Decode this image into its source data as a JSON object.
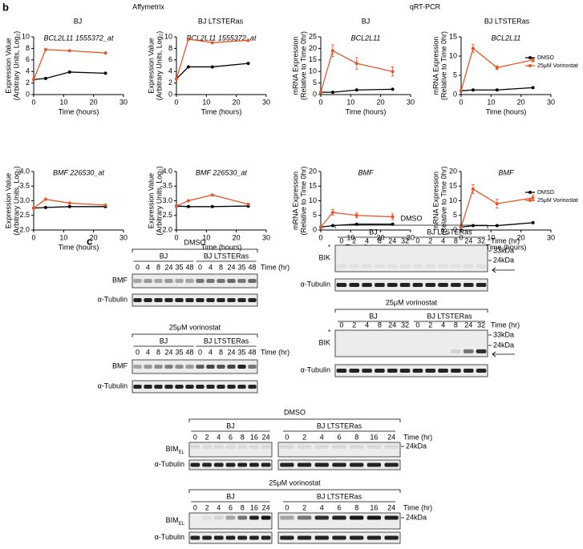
{
  "panel_labels": [
    "b",
    "c"
  ],
  "headers": {
    "methods": [
      "Affymetrix",
      "qRT-PCR"
    ],
    "columns": [
      "BJ",
      "BJ LTSTERas",
      "BJ",
      "BJ LTSTERas"
    ]
  },
  "chart_data": [
    {
      "type": "line",
      "title": "BCL2L11 1555372_at",
      "ylabel": [
        "Expression Value",
        "(Arbitrary Units, Log₂)"
      ],
      "xlabel": "Time (hours)",
      "x": [
        0,
        4,
        12,
        24
      ],
      "xlim": [
        0,
        30
      ],
      "xticks": [
        0,
        10,
        20,
        30
      ],
      "ylim": [
        0,
        10
      ],
      "yticks": [
        0,
        2,
        4,
        6,
        8,
        10
      ],
      "series": [
        {
          "name": "DMSO",
          "color": "#000000",
          "values": [
            2.6,
            2.8,
            3.9,
            3.7
          ]
        },
        {
          "name": "25μM Vorinostat",
          "color": "#e8572a",
          "values": [
            2.6,
            7.8,
            7.6,
            7.2
          ]
        }
      ]
    },
    {
      "type": "line",
      "title": "BCL2L11 1555372_at",
      "ylabel": [
        "Expression Value",
        "(Arbitrary Units, Log₂)"
      ],
      "xlabel": "Time (hours)",
      "x": [
        0,
        4,
        12,
        24
      ],
      "xlim": [
        0,
        30
      ],
      "xticks": [
        0,
        10,
        20,
        30
      ],
      "ylim": [
        0,
        10
      ],
      "yticks": [
        0,
        2,
        4,
        6,
        8,
        10
      ],
      "series": [
        {
          "name": "DMSO",
          "color": "#000000",
          "values": [
            2.7,
            4.8,
            4.8,
            5.4
          ]
        },
        {
          "name": "25μM Vorinostat",
          "color": "#e8572a",
          "values": [
            2.7,
            9.6,
            9.0,
            9.4
          ]
        }
      ]
    },
    {
      "type": "line",
      "title": "BCL2L11",
      "ylabel": [
        "mRNA Expression",
        "(Relative to Time 0hr)"
      ],
      "xlabel": "Time (hours)",
      "x": [
        0,
        4,
        12,
        24
      ],
      "xlim": [
        0,
        30
      ],
      "xticks": [
        0,
        10,
        20,
        30
      ],
      "ylim": [
        0,
        25
      ],
      "yticks": [
        0,
        5,
        10,
        15,
        20,
        25
      ],
      "series": [
        {
          "name": "DMSO",
          "color": "#000000",
          "values": [
            1,
            1,
            2,
            2.3
          ]
        },
        {
          "name": "25μM Vorinostat",
          "color": "#e8572a",
          "values": [
            1,
            19,
            13.5,
            10
          ],
          "errors": [
            0,
            2.5,
            2.5,
            2
          ]
        }
      ]
    },
    {
      "type": "line",
      "title": "BCL2L11",
      "ylabel": [
        "mRNA Expression",
        "(Relative to Time 0hr)"
      ],
      "xlabel": "Time (hours)",
      "x": [
        0,
        4,
        12,
        24
      ],
      "xlim": [
        0,
        30
      ],
      "xticks": [
        0,
        10,
        20,
        30
      ],
      "ylim": [
        0,
        15
      ],
      "yticks": [
        0,
        5,
        10,
        15
      ],
      "legend": "upper right",
      "series": [
        {
          "name": "DMSO",
          "color": "#000000",
          "values": [
            1,
            1.2,
            1.2,
            1.8
          ]
        },
        {
          "name": "25μM Vorinostat",
          "color": "#e8572a",
          "values": [
            1,
            12,
            7,
            9
          ],
          "errors": [
            0,
            1,
            0.5,
            0.5
          ]
        }
      ]
    },
    {
      "type": "line",
      "title": "BMF 226530_at",
      "ylabel": [
        "Expression Value",
        "(Arbitrary Units, Log₂)"
      ],
      "xlabel": "Time (hours)",
      "x": [
        0,
        4,
        12,
        24
      ],
      "xlim": [
        0,
        30
      ],
      "xticks": [
        0,
        10,
        20,
        30
      ],
      "ylim": [
        2,
        4
      ],
      "yticks": [
        {
          "value": 2,
          "label": "2.0"
        },
        {
          "value": 2.5,
          "label": "2.5"
        },
        {
          "value": 3,
          "label": "3.0"
        },
        {
          "value": 3.5,
          "label": "3.5"
        },
        {
          "value": 4,
          "label": "4.0"
        }
      ],
      "series": [
        {
          "name": "DMSO",
          "color": "#000000",
          "values": [
            2.75,
            2.77,
            2.8,
            2.8
          ]
        },
        {
          "name": "25μM Vorinostat",
          "color": "#e8572a",
          "values": [
            2.75,
            3.05,
            2.92,
            2.85
          ]
        }
      ]
    },
    {
      "type": "line",
      "title": "BMF 226530_at",
      "ylabel": [
        "Expression Value",
        "(Arbitrary Units, Log₂)"
      ],
      "xlabel": "Time (hours)",
      "x": [
        0,
        4,
        12,
        24
      ],
      "xlim": [
        0,
        30
      ],
      "xticks": [
        0,
        10,
        20,
        30
      ],
      "ylim": [
        2,
        4
      ],
      "yticks": [
        {
          "value": 2,
          "label": "2.0"
        },
        {
          "value": 2.5,
          "label": "2.5"
        },
        {
          "value": 3,
          "label": "3.0"
        },
        {
          "value": 3.5,
          "label": "3.5"
        },
        {
          "value": 4,
          "label": "4.0"
        }
      ],
      "series": [
        {
          "name": "DMSO",
          "color": "#000000",
          "values": [
            2.82,
            2.8,
            2.8,
            2.82
          ]
        },
        {
          "name": "25μM Vorinostat",
          "color": "#e8572a",
          "values": [
            2.82,
            3.0,
            3.2,
            2.88
          ]
        }
      ]
    },
    {
      "type": "line",
      "title": "BMF",
      "ylabel": [
        "mRNA Expression",
        "(Relative to Time 0hr)"
      ],
      "xlabel": "Time (hours)",
      "x": [
        0,
        4,
        12,
        24
      ],
      "xlim": [
        0,
        30
      ],
      "xticks": [
        0,
        10,
        20,
        30
      ],
      "ylim": [
        0,
        20
      ],
      "yticks": [
        0,
        5,
        10,
        15,
        20
      ],
      "series": [
        {
          "name": "DMSO",
          "color": "#000000",
          "values": [
            1,
            1.5,
            2,
            2
          ]
        },
        {
          "name": "25μM Vorinostat",
          "color": "#e8572a",
          "values": [
            1,
            6,
            5,
            4.5
          ],
          "errors": [
            0,
            1,
            0.8,
            1
          ]
        }
      ]
    },
    {
      "type": "line",
      "title": "BMF",
      "ylabel": [
        "mRNA Expression",
        "(Relative to Time 0hr)"
      ],
      "xlabel": "Time (hours)",
      "x": [
        0,
        4,
        12,
        24
      ],
      "xlim": [
        0,
        30
      ],
      "xticks": [
        0,
        10,
        20,
        30
      ],
      "ylim": [
        0,
        20
      ],
      "yticks": [
        0,
        5,
        10,
        15,
        20
      ],
      "legend": "upper right",
      "series": [
        {
          "name": "DMSO",
          "color": "#000000",
          "values": [
            1,
            1.5,
            1.5,
            2.5
          ]
        },
        {
          "name": "25μM Vorinostat",
          "color": "#e8572a",
          "values": [
            1,
            14,
            9,
            11
          ],
          "errors": [
            0,
            1.5,
            1.5,
            1
          ]
        }
      ]
    }
  ],
  "blots": [
    {
      "title": "DMSO",
      "time_label": "Time (hr)",
      "groups": [
        {
          "name": "BJ",
          "lanes": [
            "0",
            "4",
            "8",
            "24",
            "35",
            "48"
          ]
        },
        {
          "name": "BJ LTSTERas",
          "lanes": [
            "0",
            "4",
            "8",
            "24",
            "35",
            "48"
          ]
        }
      ],
      "rows": [
        {
          "label": "BMF"
        },
        {
          "label": "α-Tubulin"
        }
      ]
    },
    {
      "title": "25μM vorinostat",
      "time_label": "Time (hr)",
      "groups": [
        {
          "name": "BJ",
          "lanes": [
            "0",
            "4",
            "8",
            "24",
            "35",
            "48"
          ]
        },
        {
          "name": "BJ LTSTERas",
          "lanes": [
            "0",
            "4",
            "8",
            "24",
            "35",
            "48"
          ]
        }
      ],
      "rows": [
        {
          "label": "BMF"
        },
        {
          "label": "α-Tubulin"
        }
      ]
    },
    {
      "title": "DMSO",
      "time_label": "Time (hr)",
      "groups": [
        {
          "name": "BJ",
          "lanes": [
            "0",
            "2",
            "4",
            "8",
            "24",
            "32"
          ]
        },
        {
          "name": "BJ LTSTERas",
          "lanes": [
            "0",
            "2",
            "4",
            "8",
            "24",
            "32"
          ]
        }
      ],
      "rows": [
        {
          "label": "BIK",
          "star": "*",
          "markers": [
            "33kDa",
            "24kDa"
          ]
        },
        {
          "label": "α-Tubulin"
        }
      ]
    },
    {
      "title": "25μM vorinostat",
      "time_label": "Time (hr)",
      "groups": [
        {
          "name": "BJ",
          "lanes": [
            "0",
            "2",
            "4",
            "8",
            "24",
            "32"
          ]
        },
        {
          "name": "BJ LTSTERas",
          "lanes": [
            "0",
            "2",
            "4",
            "8",
            "24",
            "32"
          ]
        }
      ],
      "rows": [
        {
          "label": "BIK",
          "star": "*",
          "markers": [
            "33kDa",
            "24kDa"
          ]
        },
        {
          "label": "α-Tubulin"
        }
      ]
    },
    {
      "title": "DMSO",
      "time_label": "Time (hr)",
      "groups": [
        {
          "name": "BJ",
          "lanes": [
            "0",
            "2",
            "4",
            "6",
            "8",
            "16",
            "24"
          ]
        },
        {
          "name": "BJ LTSTERas",
          "lanes": [
            "0",
            "2",
            "4",
            "6",
            "8",
            "16",
            "24"
          ]
        }
      ],
      "rows": [
        {
          "label": "BIM",
          "sub": "EL",
          "markers": [
            "24kDa"
          ]
        },
        {
          "label": "α-Tubulin"
        }
      ]
    },
    {
      "title": "25μM vorinostat",
      "time_label": "Time (hr)",
      "groups": [
        {
          "name": "BJ",
          "lanes": [
            "0",
            "2",
            "4",
            "6",
            "8",
            "16",
            "24"
          ]
        },
        {
          "name": "BJ LTSTERas",
          "lanes": [
            "0",
            "2",
            "4",
            "6",
            "8",
            "16",
            "24"
          ]
        }
      ],
      "rows": [
        {
          "label": "BIM",
          "sub": "EL",
          "markers": [
            "24kDa"
          ]
        },
        {
          "label": "α-Tubulin"
        }
      ]
    }
  ]
}
